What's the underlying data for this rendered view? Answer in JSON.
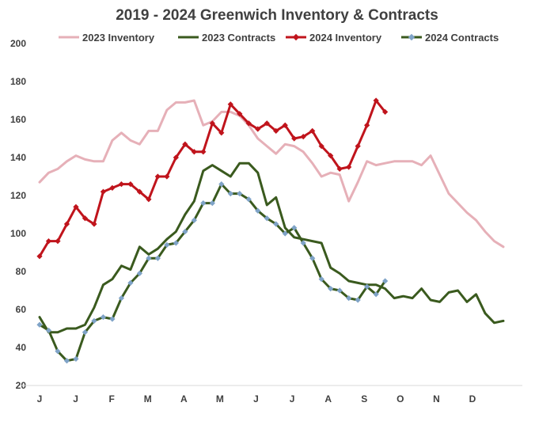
{
  "chart_data": {
    "type": "line",
    "title": "2019 - 2024 Greenwich Inventory & Contracts",
    "xlabel": "",
    "ylabel": "",
    "ylim": [
      20,
      200
    ],
    "yticks": [
      20,
      40,
      60,
      80,
      100,
      120,
      140,
      160,
      180,
      200
    ],
    "x_tick_labels": [
      "J",
      "J",
      "F",
      "M",
      "A",
      "M",
      "J",
      "J",
      "A",
      "S",
      "O",
      "N",
      "D"
    ],
    "grid": false,
    "legend_position": "top",
    "series": [
      {
        "name": "2023 Inventory",
        "color": "#e6b0b8",
        "marker": false,
        "values": [
          127,
          132,
          134,
          138,
          141,
          139,
          138,
          138,
          149,
          153,
          149,
          147,
          154,
          154,
          165,
          169,
          169,
          170,
          157,
          159,
          164,
          164,
          162,
          157,
          150,
          146,
          142,
          147,
          146,
          143,
          137,
          130,
          132,
          131,
          117,
          127,
          138,
          136,
          137,
          138,
          138,
          138,
          136,
          141,
          131,
          121,
          116,
          111,
          107,
          101,
          96,
          93
        ]
      },
      {
        "name": "2023 Contracts",
        "color": "#3a5a1e",
        "marker": false,
        "values": [
          56,
          48,
          48,
          50,
          50,
          52,
          61,
          73,
          76,
          83,
          81,
          93,
          89,
          92,
          97,
          101,
          110,
          117,
          133,
          136,
          133,
          130,
          137,
          137,
          132,
          115,
          119,
          103,
          98,
          97,
          96,
          95,
          82,
          79,
          75,
          74,
          73,
          73,
          71,
          66,
          67,
          66,
          71,
          65,
          64,
          69,
          70,
          64,
          68,
          58,
          53,
          54
        ]
      },
      {
        "name": "2024 Inventory",
        "color": "#c0141c",
        "marker": true,
        "marker_shape": "diamond",
        "values": [
          88,
          96,
          96,
          105,
          114,
          108,
          105,
          122,
          124,
          126,
          126,
          122,
          118,
          130,
          130,
          140,
          147,
          143,
          143,
          158,
          153,
          168,
          163,
          158,
          155,
          158,
          154,
          157,
          150,
          151,
          154,
          146,
          141,
          134,
          135,
          146,
          157,
          170,
          164
        ]
      },
      {
        "name": "2024 Contracts",
        "color": "#3a5a1e",
        "marker": true,
        "marker_shape": "diamond",
        "marker_color": "#7fa3c7",
        "values": [
          52,
          49,
          38,
          33,
          34,
          48,
          54,
          56,
          55,
          66,
          74,
          79,
          87,
          87,
          94,
          95,
          101,
          107,
          116,
          116,
          126,
          121,
          121,
          118,
          112,
          108,
          105,
          100,
          103,
          95,
          87,
          76,
          71,
          70,
          66,
          65,
          72,
          68,
          75
        ]
      }
    ]
  }
}
